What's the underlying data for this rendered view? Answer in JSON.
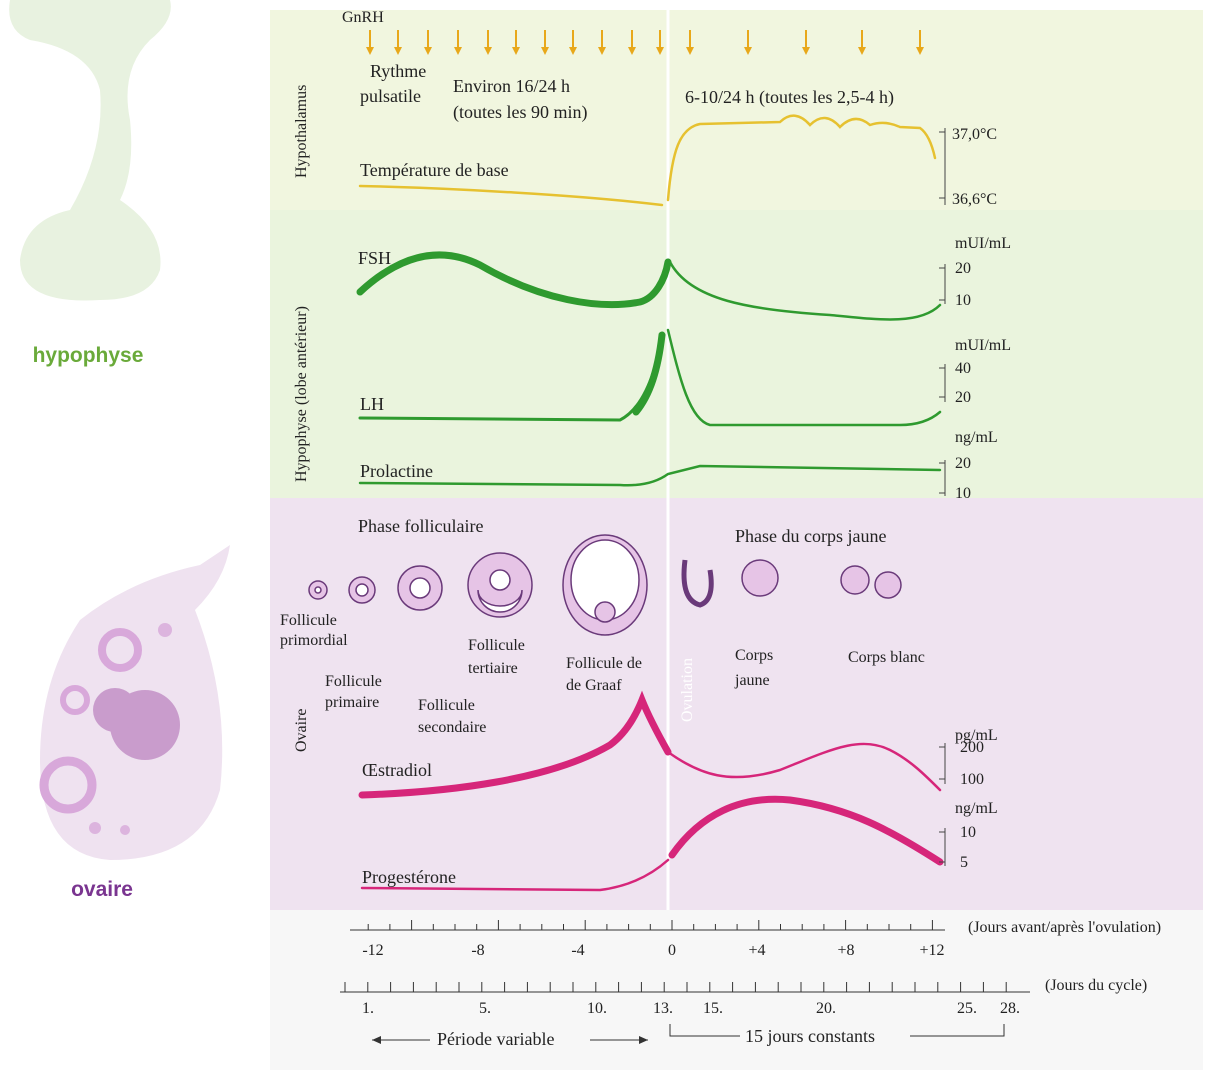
{
  "side_labels": {
    "pituitary": "hypophyse",
    "ovary": "ovaire"
  },
  "hypothalamus": {
    "section": "Hypothalamus",
    "hormone": "GnRH",
    "rhythm": [
      "Rythme",
      "pulsatile"
    ],
    "follicular_freq": [
      "Environ 16/24 h",
      "(toutes les 90 min)"
    ],
    "luteal_freq": "6-10/24 h (toutes les 2,5-4 h)",
    "temperature": "Température de base",
    "temp_scale": [
      "37,0°C",
      "36,6°C"
    ]
  },
  "pituitary": {
    "section": "Hypophyse (lobe antérieur)",
    "fsh": {
      "name": "FSH",
      "unit": "mUI/mL",
      "scale": [
        "20",
        "10"
      ]
    },
    "lh": {
      "name": "LH",
      "unit": "mUI/mL",
      "scale": [
        "40",
        "20"
      ]
    },
    "prolactin": {
      "name": "Prolactine",
      "unit": "ng/mL",
      "scale": [
        "20",
        "10"
      ]
    }
  },
  "ovary": {
    "section": "Ovaire",
    "follicular_phase": "Phase folliculaire",
    "luteal_phase": "Phase du corps jaune",
    "ovulation": "Ovulation",
    "stages": {
      "primordial": [
        "Follicule",
        "primordial"
      ],
      "primary": [
        "Follicule",
        "primaire"
      ],
      "secondary": [
        "Follicule",
        "secondaire"
      ],
      "tertiary": [
        "Follicule",
        "tertiaire"
      ],
      "graaf": [
        "Follicule de",
        "de Graaf"
      ],
      "corpus_luteum": [
        "Corps",
        "jaune"
      ],
      "corpus_albicans": "Corps blanc"
    },
    "estradiol": {
      "name": "Œstradiol",
      "unit": "pg/mL",
      "scale": [
        "200",
        "100"
      ]
    },
    "progesterone": {
      "name": "Progestérone",
      "unit": "ng/mL",
      "scale": [
        "10",
        "5"
      ]
    }
  },
  "axes": {
    "ovulation_days": {
      "title": "(Jours avant/après l'ovulation)",
      "labels": [
        "-12",
        "-8",
        "-4",
        "0",
        "+4",
        "+8",
        "+12"
      ]
    },
    "cycle_days": {
      "title": "(Jours du cycle)",
      "labels": [
        "1.",
        "5.",
        "10.",
        "13.",
        "15.",
        "20.",
        "25.",
        "28."
      ]
    },
    "variable_period": "Période variable",
    "constant_period": "15 jours constants"
  }
}
